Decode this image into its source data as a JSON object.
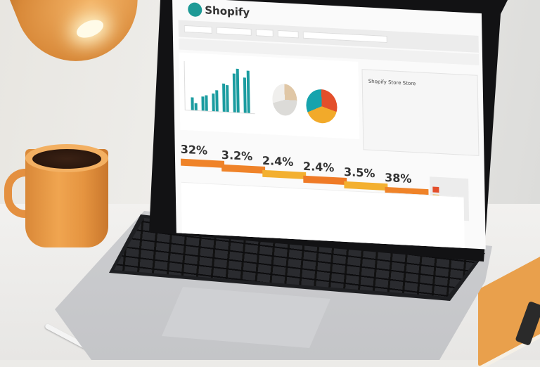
{
  "screen": {
    "brand": "Shopify",
    "store_title": "Shopify Store Store",
    "kpis": [
      {
        "value": "32%",
        "color": "#ef8329"
      },
      {
        "value": "3.2%",
        "color": "#ef8329"
      },
      {
        "value": "2.4%",
        "color": "#f3b030"
      },
      {
        "value": "2.4%",
        "color": "#ef7a26"
      },
      {
        "value": "3.5%",
        "color": "#f3b030"
      },
      {
        "value": "38%",
        "color": "#ef8329"
      }
    ],
    "pie_colors": [
      "#e34f2b",
      "#f2aa2a",
      "#16a3ad"
    ],
    "bar_color": "#1b9ca0"
  }
}
